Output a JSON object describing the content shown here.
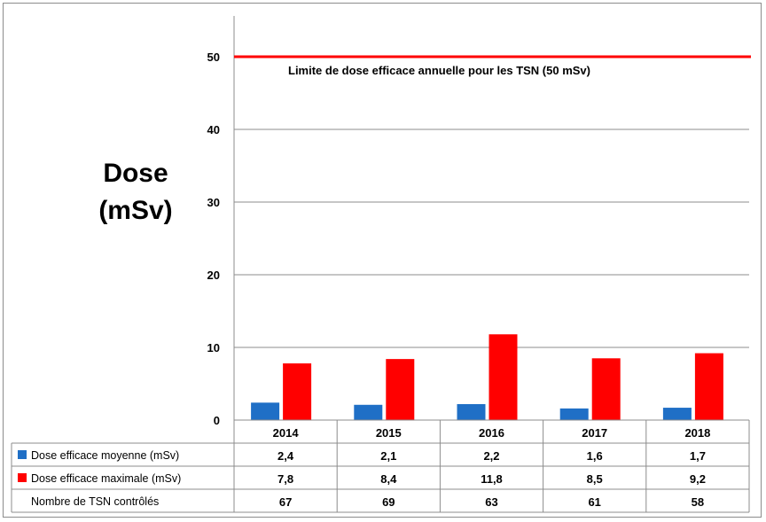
{
  "chart_data": {
    "type": "bar",
    "ylabel_lines": [
      "Dose",
      "(mSv)"
    ],
    "ylim": [
      0,
      55
    ],
    "yticks": [
      0,
      10,
      20,
      30,
      40,
      50
    ],
    "grid": true,
    "categories": [
      "2014",
      "2015",
      "2016",
      "2017",
      "2018"
    ],
    "series": [
      {
        "name": "Dose efficace moyenne (mSv)",
        "color": "#1f6fc6",
        "values": [
          2.4,
          2.1,
          2.2,
          1.6,
          1.7
        ],
        "labels": [
          "2,4",
          "2,1",
          "2,2",
          "1,6",
          "1,7"
        ]
      },
      {
        "name": "Dose efficace maximale (mSv)",
        "color": "#ff0000",
        "values": [
          7.8,
          8.4,
          11.8,
          8.5,
          9.2
        ],
        "labels": [
          "7,8",
          "8,4",
          "11,8",
          "8,5",
          "9,2"
        ]
      }
    ],
    "table_extra_row": {
      "name": "Nombre de TSN contrôlés",
      "values": [
        "67",
        "69",
        "63",
        "61",
        "58"
      ]
    },
    "reference_line": {
      "value": 50,
      "color": "#ff0000",
      "label": "Limite de dose efficace annuelle pour les TSN (50 mSv)"
    }
  }
}
